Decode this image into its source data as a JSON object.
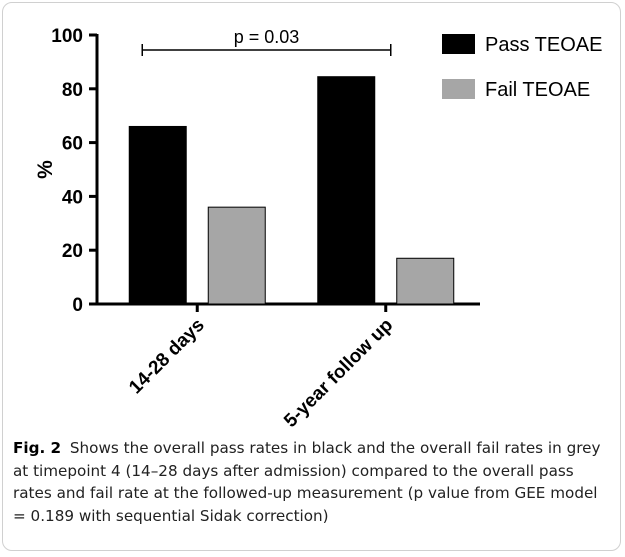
{
  "chart_data": {
    "type": "bar",
    "categories": [
      "14-28 days",
      "5-year follow up"
    ],
    "series": [
      {
        "name": "Pass TEOAE",
        "values": [
          66,
          84.5
        ],
        "color": "#000000"
      },
      {
        "name": "Fail TEOAE",
        "values": [
          36,
          17
        ],
        "color": "#a6a6a6"
      }
    ],
    "ylabel": "%",
    "ylim": [
      0,
      100
    ],
    "yticks": [
      0,
      20,
      40,
      60,
      80,
      100
    ],
    "grid": false,
    "legend_position": "top-right",
    "annotation": "p  = 0.03"
  },
  "caption": {
    "label": "Fig. 2",
    "text": "Shows the overall pass rates in black and the overall fail rates in grey at timepoint 4 (14–28 days after admission) compared to the overall pass rates and fail rate at the followed-up measurement (p value from GEE model = 0.189 with sequential Sidak correction)"
  }
}
